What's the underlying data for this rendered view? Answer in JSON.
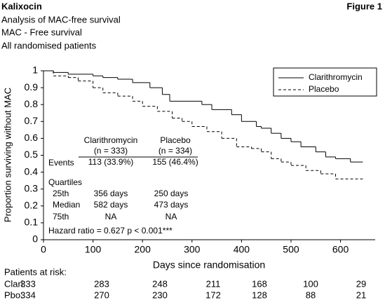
{
  "chart_data": {
    "type": "step",
    "title": "Kalixocin",
    "figure_label": "Figure 1",
    "subtitles": [
      "Analysis of MAC-free survival",
      "MAC - Free survival",
      "All randomised patients"
    ],
    "xlabel": "Days since randomisation",
    "ylabel": "Proportion surviving without MAC",
    "xlim": [
      0,
      670
    ],
    "ylim": [
      0,
      1
    ],
    "xticks": [
      0,
      100,
      200,
      300,
      400,
      500,
      600
    ],
    "yticks": [
      0,
      0.1,
      0.2,
      0.3,
      0.4,
      0.5,
      0.6,
      0.7,
      0.8,
      0.9,
      1
    ],
    "legend_position": "upper right",
    "series": [
      {
        "name": "Clarithromycin",
        "color": "#000000",
        "dash": "solid",
        "x": [
          0,
          20,
          50,
          100,
          120,
          150,
          180,
          215,
          240,
          255,
          320,
          340,
          380,
          400,
          430,
          440,
          460,
          480,
          500,
          520,
          550,
          570,
          590,
          620,
          645
        ],
        "values": [
          1,
          0.99,
          0.98,
          0.97,
          0.96,
          0.95,
          0.93,
          0.9,
          0.86,
          0.82,
          0.8,
          0.77,
          0.74,
          0.7,
          0.67,
          0.66,
          0.63,
          0.6,
          0.58,
          0.55,
          0.52,
          0.49,
          0.48,
          0.46,
          0.46
        ]
      },
      {
        "name": "Placebo",
        "color": "#000000",
        "dash": "dashed",
        "x": [
          0,
          20,
          50,
          70,
          100,
          120,
          150,
          180,
          200,
          230,
          260,
          280,
          300,
          330,
          360,
          390,
          420,
          440,
          460,
          480,
          500,
          530,
          560,
          590,
          645
        ],
        "values": [
          1,
          0.97,
          0.96,
          0.94,
          0.9,
          0.87,
          0.85,
          0.82,
          0.79,
          0.76,
          0.72,
          0.7,
          0.67,
          0.64,
          0.6,
          0.55,
          0.54,
          0.52,
          0.48,
          0.46,
          0.44,
          0.41,
          0.39,
          0.36,
          0.36
        ]
      }
    ],
    "annotations": {
      "col1": [
        "Clarithromycin",
        "(n = 333)"
      ],
      "col2": [
        "Placebo",
        "(n = 334)"
      ],
      "events": [
        "Events",
        "113 (33.9%)",
        "155 (46.4%)"
      ],
      "quartiles": "Quartiles",
      "q25": [
        "25th",
        "356 days",
        "250 days"
      ],
      "median": [
        "Median",
        "582 days",
        "473 days"
      ],
      "q75": [
        "75th",
        "NA",
        "NA"
      ],
      "hazard": "Hazard ratio = 0.627 p < 0.001***"
    },
    "risk_table": {
      "title": "Patients at risk:",
      "rows": [
        {
          "label": "Clari:",
          "values": [
            333,
            283,
            248,
            211,
            168,
            100,
            29
          ]
        },
        {
          "label": "Pbo:",
          "values": [
            334,
            270,
            230,
            172,
            128,
            88,
            21
          ]
        }
      ]
    }
  }
}
